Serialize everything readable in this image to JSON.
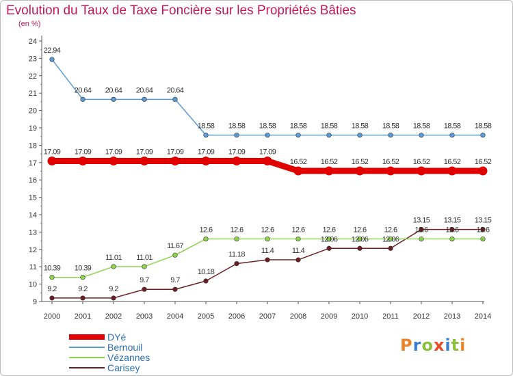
{
  "header": {
    "title": "Evolution du Taux de Taxe Foncière sur les Propriétés Bâties",
    "subtitle": "(en %)"
  },
  "logo": {
    "text": "Proxiti",
    "letter_colors": [
      "#e8832a",
      "#3b7fd0",
      "#8cbf3f",
      "#e84a2a",
      "#3b7fd0",
      "#8cbf3f",
      "#e8832a"
    ]
  },
  "chart_data": {
    "type": "line",
    "x": [
      "2000",
      "2001",
      "2002",
      "2003",
      "2004",
      "2005",
      "2006",
      "2007",
      "2008",
      "2009",
      "2010",
      "2011",
      "2012",
      "2013",
      "2014"
    ],
    "ylim": [
      9,
      24
    ],
    "yticks": [
      9,
      10,
      11,
      12,
      13,
      14,
      15,
      16,
      17,
      18,
      19,
      20,
      21,
      22,
      23,
      24
    ],
    "grid": false,
    "legend_position": "bottom-left",
    "series": [
      {
        "name": "DYé",
        "color": "#e00000",
        "values": [
          17.09,
          17.09,
          17.09,
          17.09,
          17.09,
          17.09,
          17.09,
          17.09,
          16.52,
          16.52,
          16.52,
          16.52,
          16.52,
          16.52,
          16.52
        ],
        "labels": [
          "17.09",
          "17.09",
          "17.09",
          "17.09",
          "17.09",
          "17.09",
          "17.09",
          "17.09",
          "16.52",
          "16.52",
          "16.52",
          "16.52",
          "16.52",
          "16.52",
          "16.52"
        ]
      },
      {
        "name": "Bernouil",
        "color": "#5b9bd5",
        "values": [
          22.94,
          20.64,
          20.64,
          20.64,
          20.64,
          18.58,
          18.58,
          18.58,
          18.58,
          18.58,
          18.58,
          18.58,
          18.58,
          18.58,
          18.58
        ],
        "labels": [
          "22.94",
          "20.64",
          "20.64",
          "20.64",
          "20.64",
          "18.58",
          "18.58",
          "18.58",
          "18.58",
          "18.58",
          "18.58",
          "18.58",
          "18.58",
          "18.58",
          "18.58"
        ]
      },
      {
        "name": "Vézannes",
        "color": "#8ed34e",
        "values": [
          10.39,
          10.39,
          11.01,
          11.01,
          11.67,
          12.6,
          12.6,
          12.6,
          12.6,
          12.6,
          12.6,
          12.6,
          12.6,
          12.6,
          12.6
        ],
        "labels": [
          "10.39",
          "10.39",
          "11.01",
          "11.01",
          "11.67",
          "12.6",
          "12.6",
          "12.6",
          "12.6",
          "12.6",
          "12.6",
          "12.6",
          "12.6",
          "12.6",
          "12.6"
        ]
      },
      {
        "name": "Carisey",
        "color": "#6b1f24",
        "values": [
          9.2,
          9.2,
          9.2,
          9.7,
          9.7,
          10.18,
          11.18,
          11.4,
          11.4,
          12.06,
          12.06,
          12.06,
          13.15,
          13.15,
          13.15
        ],
        "labels": [
          "9.2",
          "9.2",
          "9.2",
          "9.7",
          "9.7",
          "10.18",
          "11.18",
          "11.4",
          "11.4",
          "12.06",
          "12.06",
          "12.06",
          "13.15",
          "13.15",
          "13.15"
        ]
      }
    ]
  }
}
